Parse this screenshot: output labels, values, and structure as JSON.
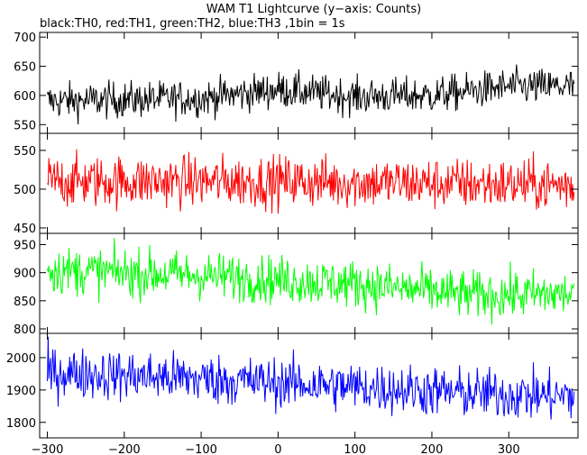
{
  "chart_data": {
    "type": "line",
    "title": "WAM T1 Lightcurve (y−axis: Counts)",
    "subtitle": "black:TH0, red:TH1, green:TH2, blue:TH3 ,1bin = 1s",
    "xlabel": "",
    "x_range": [
      -310,
      390
    ],
    "x_ticks": [
      -300,
      -200,
      -100,
      0,
      100,
      200,
      300
    ],
    "grid": false,
    "panels": [
      {
        "name": "",
        "color": "#000000",
        "ylim": [
          535,
          708
        ],
        "y_ticks": [
          550,
          600,
          650,
          700
        ],
        "trend": [
          [
            -300,
            590
          ],
          [
            -100,
            595
          ],
          [
            0,
            610
          ],
          [
            100,
            598
          ],
          [
            200,
            600
          ],
          [
            300,
            615
          ],
          [
            385,
            615
          ]
        ],
        "noise_amplitude": 28
      },
      {
        "name": "",
        "color": "#ff0000",
        "ylim": [
          443,
          572
        ],
        "y_ticks": [
          450,
          500,
          550
        ],
        "trend": [
          [
            -300,
            510
          ],
          [
            0,
            510
          ],
          [
            385,
            505
          ]
        ],
        "noise_amplitude": 30
      },
      {
        "name": "",
        "color": "#00ff00",
        "ylim": [
          792,
          970
        ],
        "y_ticks": [
          800,
          850,
          900,
          950
        ],
        "trend": [
          [
            -300,
            905
          ],
          [
            -100,
            895
          ],
          [
            100,
            880
          ],
          [
            250,
            860
          ],
          [
            385,
            862
          ]
        ],
        "noise_amplitude": 38
      },
      {
        "name": "",
        "color": "#0000ff",
        "ylim": [
          1752,
          2075
        ],
        "y_ticks": [
          1800,
          1900,
          2000
        ],
        "trend": [
          [
            -300,
            1955
          ],
          [
            -100,
            1935
          ],
          [
            100,
            1910
          ],
          [
            250,
            1890
          ],
          [
            385,
            1880
          ]
        ],
        "noise_amplitude": 70
      }
    ]
  }
}
